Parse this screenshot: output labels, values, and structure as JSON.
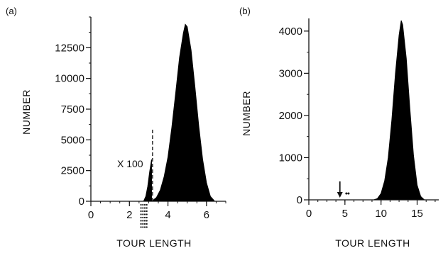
{
  "chart_data": [
    {
      "panel_label": "(a)",
      "type": "area",
      "xlabel": "TOUR LENGTH",
      "ylabel": "NUMBER",
      "xlim": [
        0,
        7
      ],
      "ylim": [
        0,
        15000
      ],
      "x_ticks": [
        0,
        2,
        4,
        6
      ],
      "x_tick_labels": [
        "0",
        "2",
        "4",
        "6"
      ],
      "y_ticks": [
        0,
        2500,
        5000,
        7500,
        10000,
        12500
      ],
      "y_tick_labels": [
        "0",
        "2500",
        "5000",
        "7500",
        "10000",
        "12500"
      ],
      "grid": false,
      "annotations": [
        {
          "text": "X 100",
          "x": 2.9,
          "y": 2000
        }
      ],
      "series": [
        {
          "values_x": [
            2.75,
            2.85,
            2.95,
            3.05,
            3.15
          ],
          "values_y": [
            50,
            400,
            1200,
            2400,
            3400
          ]
        },
        {
          "values_x": [
            3.2,
            3.4,
            3.6,
            3.8,
            4.0,
            4.2,
            4.4,
            4.6,
            4.8,
            4.9,
            5.0,
            5.2,
            5.4,
            5.6,
            5.8,
            6.0,
            6.2,
            6.4
          ],
          "values_y": [
            50,
            300,
            900,
            2000,
            3600,
            6000,
            8800,
            11700,
            13700,
            14400,
            14200,
            12300,
            9300,
            6100,
            3400,
            1500,
            400,
            50
          ]
        }
      ],
      "dashed_line": {
        "x": 3.2,
        "y_top": 5900
      },
      "dotted_markers_x": [
        2.6,
        2.7,
        2.8,
        2.9
      ]
    },
    {
      "panel_label": "(b)",
      "type": "area",
      "xlabel": "TOUR LENGTH",
      "ylabel": "NUMBER",
      "xlim": [
        0,
        18
      ],
      "ylim": [
        0,
        4300
      ],
      "x_ticks": [
        0,
        5,
        10,
        15
      ],
      "x_tick_labels": [
        "0",
        "5",
        "10",
        "15"
      ],
      "y_ticks": [
        0,
        1000,
        2000,
        3000,
        4000
      ],
      "y_tick_labels": [
        "0",
        "1000",
        "2000",
        "3000",
        "4000"
      ],
      "grid": false,
      "series": [
        {
          "values_x": [
            9.0,
            9.5,
            10.0,
            10.5,
            11.0,
            11.5,
            12.0,
            12.5,
            12.8,
            13.0,
            13.5,
            14.0,
            14.5,
            15.0,
            15.5,
            16.0
          ],
          "values_y": [
            0,
            30,
            150,
            450,
            1000,
            1900,
            3000,
            3900,
            4250,
            4150,
            3350,
            2150,
            1050,
            350,
            80,
            0
          ]
        }
      ],
      "arrow_marker_x": 4.3,
      "dot_markers_x": [
        5.2,
        5.5
      ]
    }
  ]
}
